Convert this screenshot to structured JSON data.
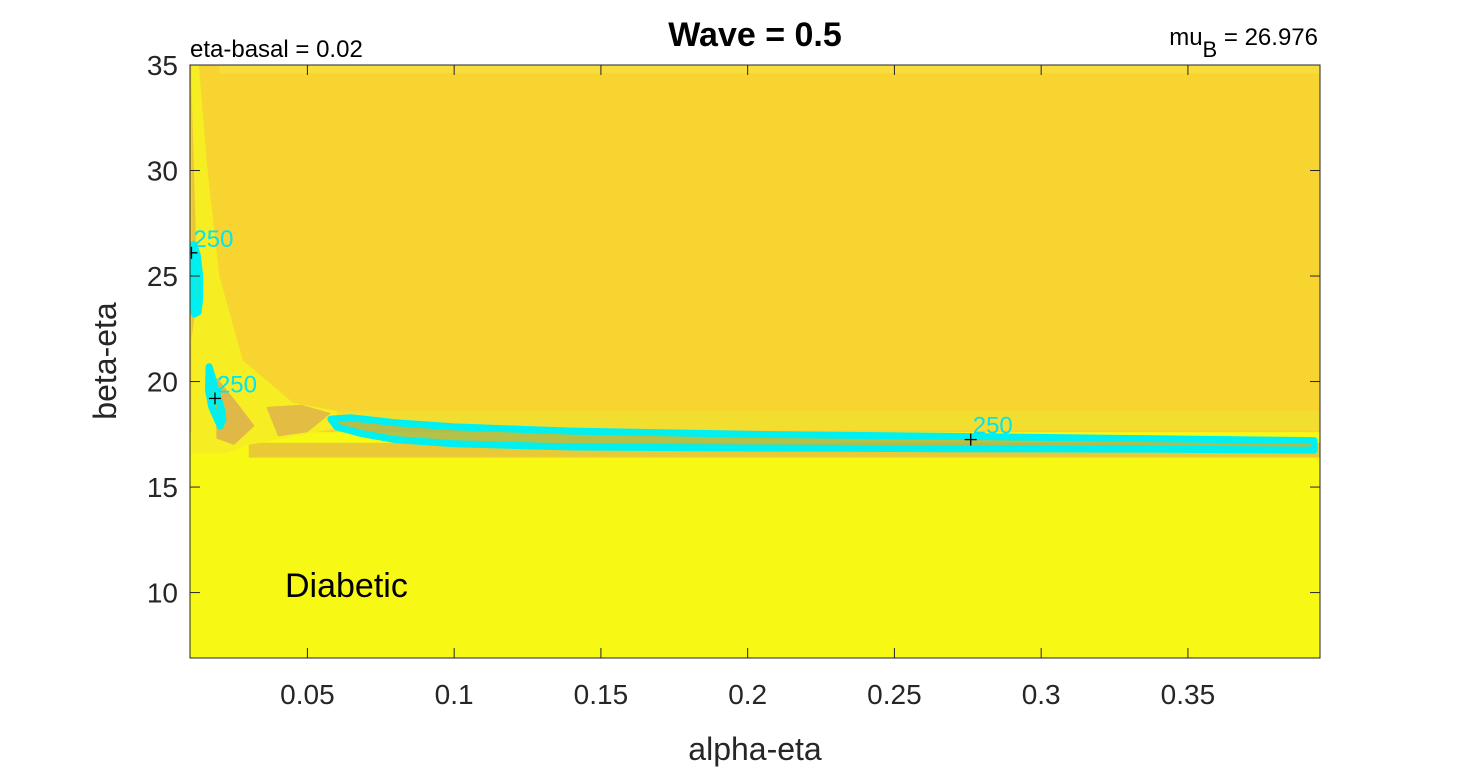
{
  "chart_data": {
    "type": "heatmap",
    "title": "Wave = 0.5",
    "xlabel": "alpha-eta",
    "ylabel": "beta-eta",
    "xlim": [
      0.01,
      0.395
    ],
    "ylim": [
      6.9,
      35
    ],
    "xticks": [
      0.05,
      0.1,
      0.15,
      0.2,
      0.25,
      0.3,
      0.35
    ],
    "xtick_labels": [
      "0.05",
      "0.1",
      "0.15",
      "0.2",
      "0.25",
      "0.3",
      "0.35"
    ],
    "yticks": [
      10,
      15,
      20,
      25,
      30,
      35
    ],
    "ytick_labels": [
      "10",
      "15",
      "20",
      "25",
      "30",
      "35"
    ],
    "annotations": {
      "left": "eta-basal = 0.02",
      "right_prefix": "mu",
      "right_subscript": "B",
      "right_suffix": " = 26.976",
      "region_label": "Diabetic"
    },
    "contour_level": "250",
    "contour_color": "#00f0f0",
    "contours": [
      {
        "label": "250",
        "label_x": 0.0105,
        "label_y": 26.1,
        "points": [
          [
            0.0112,
            26.5
          ],
          [
            0.0125,
            26.0
          ],
          [
            0.0133,
            25.0
          ],
          [
            0.0133,
            24.0
          ],
          [
            0.0128,
            23.3
          ],
          [
            0.0115,
            23.2
          ],
          [
            0.0108,
            24.0
          ],
          [
            0.0106,
            25.2
          ],
          [
            0.0107,
            26.2
          ],
          [
            0.0112,
            26.5
          ]
        ]
      },
      {
        "label": "250",
        "label_x": 0.0185,
        "label_y": 19.2,
        "points": [
          [
            0.0165,
            20.7
          ],
          [
            0.0178,
            20.1
          ],
          [
            0.0192,
            19.4
          ],
          [
            0.0207,
            18.7
          ],
          [
            0.0212,
            18.2
          ],
          [
            0.0203,
            17.9
          ],
          [
            0.019,
            18.3
          ],
          [
            0.0174,
            18.8
          ],
          [
            0.0163,
            19.6
          ],
          [
            0.0165,
            20.7
          ]
        ]
      },
      {
        "label": "250",
        "label_x": 0.276,
        "label_y": 17.25,
        "points": [
          [
            0.058,
            18.22
          ],
          [
            0.065,
            18.28
          ],
          [
            0.08,
            18.05
          ],
          [
            0.1,
            17.85
          ],
          [
            0.14,
            17.65
          ],
          [
            0.2,
            17.5
          ],
          [
            0.27,
            17.4
          ],
          [
            0.33,
            17.3
          ],
          [
            0.393,
            17.2
          ],
          [
            0.393,
            16.75
          ],
          [
            0.33,
            16.8
          ],
          [
            0.27,
            16.82
          ],
          [
            0.2,
            16.85
          ],
          [
            0.14,
            16.9
          ],
          [
            0.1,
            17.05
          ],
          [
            0.08,
            17.25
          ],
          [
            0.068,
            17.55
          ],
          [
            0.06,
            17.85
          ],
          [
            0.058,
            18.22
          ]
        ]
      }
    ],
    "colors": {
      "background_low": "#f8f815",
      "plateau": "#f8d430",
      "valley": "#a8b850",
      "contour": "#00f0f0"
    }
  }
}
